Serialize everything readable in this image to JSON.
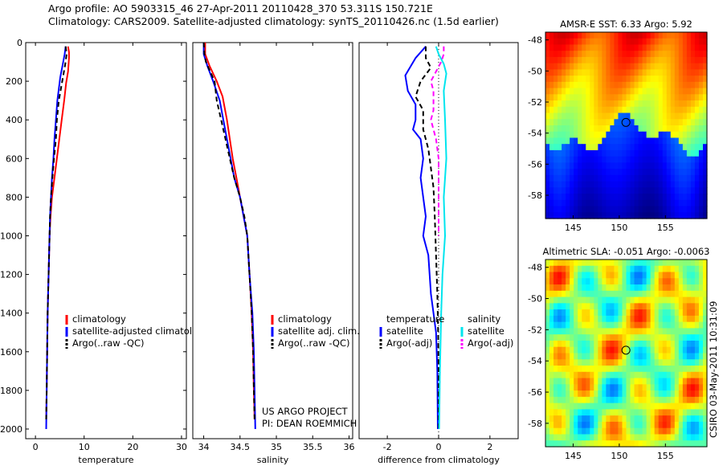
{
  "title_line1": "Argo profile: AO 5903315_46 27-Apr-2011 20110428_370 53.311S 150.721E",
  "title_line2": "Climatology: CARS2009. Satellite-adjusted climatology: synTS_20110426.nc (1.5d earlier)",
  "footer": {
    "project": "US ARGO PROJECT",
    "pi": "PI: DEAN ROEMMICH",
    "stamp": "CSIRO 03-May-2011 10:31:09"
  },
  "colors": {
    "climatology": "#ff0000",
    "satellite": "#0000ff",
    "argo": "#000000",
    "sal_satellite": "#00e5ee",
    "sal_argo": "#ff00ff"
  },
  "chart_data": [
    {
      "id": "temperature",
      "type": "line",
      "xlabel": "temperature",
      "ylabel": "",
      "xlim": [
        -2,
        31
      ],
      "ylim": [
        2050,
        0
      ],
      "y_reversed": true,
      "xticks": [
        0,
        10,
        20,
        30
      ],
      "yticks": [
        0,
        200,
        400,
        600,
        800,
        1000,
        1200,
        1400,
        1600,
        1800,
        2000
      ],
      "legend": [
        "climatology",
        "satellite-adjusted climatolog",
        "Argo(..raw -QC)"
      ],
      "series": [
        {
          "name": "climatology",
          "color": "#ff0000",
          "dash": "",
          "points": [
            [
              6.7,
              20
            ],
            [
              6.9,
              50
            ],
            [
              6.9,
              80
            ],
            [
              6.7,
              150
            ],
            [
              6.3,
              210
            ],
            [
              5.9,
              300
            ],
            [
              5.4,
              400
            ],
            [
              4.9,
              500
            ],
            [
              4.4,
              600
            ],
            [
              3.9,
              700
            ],
            [
              3.4,
              800
            ],
            [
              3.1,
              900
            ],
            [
              2.9,
              1000
            ],
            [
              2.7,
              1200
            ],
            [
              2.5,
              1400
            ],
            [
              2.4,
              1600
            ],
            [
              2.3,
              1800
            ],
            [
              2.2,
              1950
            ]
          ]
        },
        {
          "name": "satellite-adjusted climatolog",
          "color": "#0000ff",
          "dash": "",
          "points": [
            [
              6.2,
              20
            ],
            [
              6.0,
              60
            ],
            [
              5.7,
              100
            ],
            [
              5.1,
              180
            ],
            [
              4.8,
              240
            ],
            [
              4.5,
              300
            ],
            [
              4.2,
              400
            ],
            [
              3.9,
              500
            ],
            [
              3.7,
              600
            ],
            [
              3.4,
              700
            ],
            [
              3.2,
              800
            ],
            [
              3.0,
              900
            ],
            [
              2.9,
              1000
            ],
            [
              2.7,
              1200
            ],
            [
              2.5,
              1400
            ],
            [
              2.4,
              1600
            ],
            [
              2.3,
              1800
            ],
            [
              2.2,
              2000
            ]
          ]
        },
        {
          "name": "Argo(..raw -QC)",
          "color": "#000000",
          "dash": "6,4",
          "points": [
            [
              6.2,
              20
            ],
            [
              6.4,
              60
            ],
            [
              6.2,
              100
            ],
            [
              5.5,
              200
            ],
            [
              4.8,
              300
            ],
            [
              4.4,
              400
            ],
            [
              4.2,
              500
            ],
            [
              3.8,
              600
            ],
            [
              3.5,
              700
            ],
            [
              3.2,
              800
            ],
            [
              3.0,
              900
            ],
            [
              2.9,
              1000
            ],
            [
              2.7,
              1200
            ],
            [
              2.5,
              1400
            ],
            [
              2.4,
              1600
            ],
            [
              2.3,
              1800
            ],
            [
              2.2,
              1950
            ]
          ]
        }
      ]
    },
    {
      "id": "salinity",
      "type": "line",
      "xlabel": "salinity",
      "ylabel": "",
      "xlim": [
        33.85,
        36.05
      ],
      "ylim": [
        2050,
        0
      ],
      "y_reversed": true,
      "xticks": [
        34,
        34.5,
        35,
        35.5,
        36
      ],
      "legend": [
        "climatology",
        "satellite adj. clim.",
        "Argo(..raw -QC)"
      ],
      "series": [
        {
          "name": "climatology",
          "color": "#ff0000",
          "dash": "",
          "points": [
            [
              34.02,
              0
            ],
            [
              34.02,
              60
            ],
            [
              34.08,
              120
            ],
            [
              34.18,
              200
            ],
            [
              34.26,
              280
            ],
            [
              34.32,
              400
            ],
            [
              34.4,
              600
            ],
            [
              34.45,
              700
            ],
            [
              34.5,
              800
            ],
            [
              34.55,
              900
            ],
            [
              34.6,
              1000
            ],
            [
              34.63,
              1200
            ],
            [
              34.66,
              1400
            ],
            [
              34.68,
              1600
            ],
            [
              34.69,
              1800
            ],
            [
              34.7,
              1950
            ]
          ]
        },
        {
          "name": "satellite adj. clim.",
          "color": "#0000ff",
          "dash": "",
          "points": [
            [
              34.0,
              0
            ],
            [
              34.0,
              60
            ],
            [
              34.05,
              120
            ],
            [
              34.13,
              200
            ],
            [
              34.22,
              300
            ],
            [
              34.32,
              500
            ],
            [
              34.42,
              700
            ],
            [
              34.5,
              800
            ],
            [
              34.55,
              900
            ],
            [
              34.6,
              1000
            ],
            [
              34.63,
              1200
            ],
            [
              34.67,
              1400
            ],
            [
              34.69,
              1600
            ],
            [
              34.7,
              1800
            ],
            [
              34.71,
              2000
            ]
          ]
        },
        {
          "name": "Argo(..raw -QC)",
          "color": "#000000",
          "dash": "6,4",
          "points": [
            [
              34.0,
              0
            ],
            [
              34.01,
              60
            ],
            [
              34.03,
              100
            ],
            [
              34.15,
              200
            ],
            [
              34.18,
              300
            ],
            [
              34.24,
              400
            ],
            [
              34.3,
              500
            ],
            [
              34.36,
              600
            ],
            [
              34.42,
              700
            ],
            [
              34.5,
              800
            ],
            [
              34.56,
              900
            ],
            [
              34.6,
              1000
            ],
            [
              34.63,
              1200
            ],
            [
              34.66,
              1400
            ],
            [
              34.68,
              1600
            ],
            [
              34.69,
              1800
            ],
            [
              34.7,
              1950
            ]
          ]
        }
      ]
    },
    {
      "id": "difference",
      "type": "line",
      "xlabel": "difference from climatology",
      "ylabel": "",
      "xlim": [
        -3.1,
        3.1
      ],
      "ylim": [
        2050,
        0
      ],
      "y_reversed": true,
      "xticks": [
        -2,
        0,
        2
      ],
      "legend_left": [
        "temperature",
        "satellite",
        "Argo(-adj)"
      ],
      "legend_right": [
        "salinity",
        "satellite",
        "Argo(-adj)"
      ],
      "series": [
        {
          "name": "temperature satellite",
          "color": "#0000ff",
          "dash": "",
          "points": [
            [
              -0.5,
              20
            ],
            [
              -0.9,
              80
            ],
            [
              -1.3,
              170
            ],
            [
              -1.2,
              250
            ],
            [
              -0.9,
              320
            ],
            [
              -0.9,
              400
            ],
            [
              -1.0,
              450
            ],
            [
              -0.7,
              500
            ],
            [
              -0.6,
              600
            ],
            [
              -0.7,
              700
            ],
            [
              -0.6,
              800
            ],
            [
              -0.5,
              900
            ],
            [
              -0.6,
              1000
            ],
            [
              -0.4,
              1100
            ],
            [
              -0.3,
              1300
            ],
            [
              -0.1,
              1500
            ],
            [
              -0.05,
              1700
            ],
            [
              -0.03,
              2000
            ]
          ]
        },
        {
          "name": "temperature Argo(-adj)",
          "color": "#000000",
          "dash": "6,4",
          "points": [
            [
              -0.5,
              20
            ],
            [
              -0.5,
              80
            ],
            [
              -0.3,
              130
            ],
            [
              -0.7,
              200
            ],
            [
              -0.9,
              280
            ],
            [
              -0.6,
              350
            ],
            [
              -0.6,
              450
            ],
            [
              -0.4,
              550
            ],
            [
              -0.3,
              650
            ],
            [
              -0.2,
              750
            ],
            [
              -0.15,
              900
            ],
            [
              -0.1,
              1100
            ],
            [
              -0.05,
              1300
            ],
            [
              -0.02,
              1500
            ],
            [
              0,
              1700
            ],
            [
              0,
              2000
            ]
          ]
        },
        {
          "name": "salinity satellite",
          "color": "#00e5ee",
          "dash": "",
          "points": [
            [
              -0.1,
              20
            ],
            [
              0.0,
              60
            ],
            [
              0.2,
              110
            ],
            [
              0.3,
              160
            ],
            [
              0.2,
              250
            ],
            [
              0.25,
              400
            ],
            [
              0.3,
              600
            ],
            [
              0.2,
              800
            ],
            [
              0.25,
              1000
            ],
            [
              0.15,
              1200
            ],
            [
              0.1,
              1400
            ],
            [
              0.05,
              1700
            ],
            [
              0.02,
              2000
            ]
          ]
        },
        {
          "name": "salinity Argo(-adj)",
          "color": "#ff00ff",
          "dash": "6,4",
          "points": [
            [
              0.2,
              20
            ],
            [
              0.2,
              60
            ],
            [
              0.1,
              100
            ],
            [
              -0.3,
              200
            ],
            [
              -0.2,
              250
            ],
            [
              -0.2,
              350
            ],
            [
              -0.3,
              400
            ],
            [
              -0.2,
              450
            ],
            [
              -0.1,
              500
            ],
            [
              0.0,
              600
            ],
            [
              0.0,
              800
            ],
            [
              0.0,
              1000
            ]
          ]
        }
      ]
    },
    {
      "id": "sst_map",
      "type": "heatmap",
      "title": "AMSR-E SST: 6.33 Argo: 5.92",
      "xlim": [
        142,
        159.5
      ],
      "ylim": [
        -59.5,
        -47.5
      ],
      "xticks": [
        145,
        150,
        155
      ],
      "yticks": [
        -48,
        -50,
        -52,
        -54,
        -56,
        -58
      ],
      "marker": [
        150.721,
        -53.311
      ]
    },
    {
      "id": "sla_map",
      "type": "heatmap",
      "title": "Altimetric SLA: -0.051 Argo: -0.0063",
      "xlim": [
        142,
        159.5
      ],
      "ylim": [
        -59.5,
        -47.5
      ],
      "xticks": [
        145,
        150,
        155
      ],
      "yticks": [
        -48,
        -50,
        -52,
        -54,
        -56,
        -58
      ],
      "marker": [
        150.721,
        -53.311
      ]
    }
  ]
}
